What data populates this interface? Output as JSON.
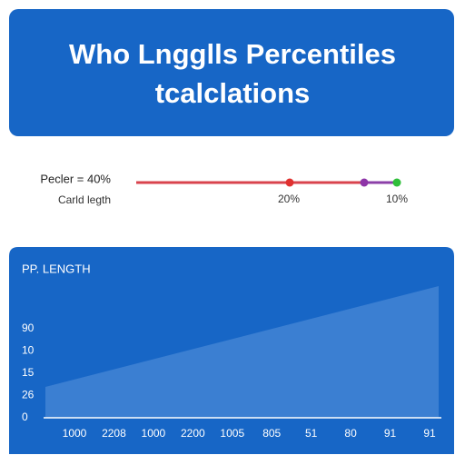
{
  "header": {
    "lines": [
      "Who Lngglls Percentiles",
      "tcalclations"
    ]
  },
  "slider": {
    "label": "Pecler = 40%",
    "sublabel": "Carld legth",
    "marker_labels": [
      "20%",
      "10%"
    ]
  },
  "chart_panel": {
    "title": "PP. LENGTH",
    "y_labels": [
      "90",
      "10",
      "15",
      "26",
      "0"
    ],
    "x_labels": [
      "1000",
      "2208",
      "1000",
      "2200",
      "1005",
      "805",
      "51",
      "80",
      "91",
      "91"
    ]
  }
}
